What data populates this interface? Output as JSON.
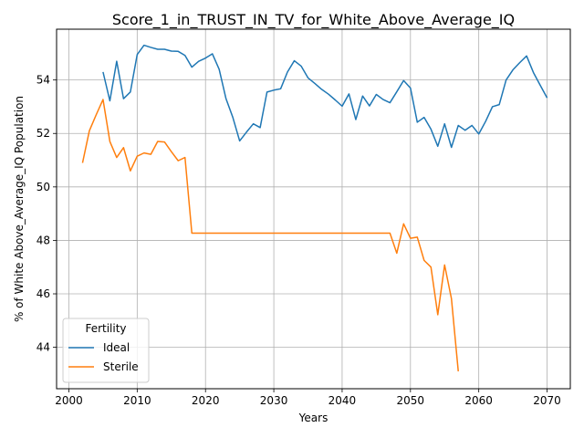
{
  "chart_data": {
    "type": "line",
    "title": "Score_1_in_TRUST_IN_TV_for_White_Above_Average_IQ",
    "xlabel": "Years",
    "ylabel": "% of White Above_Average_IQ Population",
    "xlim": [
      1998.2,
      2073.4
    ],
    "ylim": [
      42.45,
      55.9
    ],
    "xticks": [
      2000,
      2010,
      2020,
      2030,
      2040,
      2050,
      2060,
      2070
    ],
    "yticks": [
      44,
      46,
      48,
      50,
      52,
      54
    ],
    "grid": true,
    "legend": {
      "title": "Fertility",
      "placement": "lower-left"
    },
    "series": [
      {
        "name": "Ideal",
        "color": "#1f77b4",
        "points": [
          [
            2005,
            54.3
          ],
          [
            2006,
            53.22
          ],
          [
            2007,
            54.7
          ],
          [
            2008,
            53.3
          ],
          [
            2009,
            53.55
          ],
          [
            2010,
            54.95
          ],
          [
            2011,
            55.3
          ],
          [
            2012,
            55.22
          ],
          [
            2013,
            55.15
          ],
          [
            2014,
            55.15
          ],
          [
            2015,
            55.08
          ],
          [
            2016,
            55.07
          ],
          [
            2017,
            54.92
          ],
          [
            2018,
            54.48
          ],
          [
            2019,
            54.7
          ],
          [
            2020,
            54.82
          ],
          [
            2021,
            54.98
          ],
          [
            2022,
            54.4
          ],
          [
            2023,
            53.3
          ],
          [
            2024,
            52.6
          ],
          [
            2025,
            51.72
          ],
          [
            2026,
            52.05
          ],
          [
            2027,
            52.36
          ],
          [
            2028,
            52.22
          ],
          [
            2029,
            53.55
          ],
          [
            2030,
            53.62
          ],
          [
            2031,
            53.67
          ],
          [
            2032,
            54.3
          ],
          [
            2033,
            54.72
          ],
          [
            2034,
            54.52
          ],
          [
            2035,
            54.08
          ],
          [
            2036,
            53.87
          ],
          [
            2037,
            53.65
          ],
          [
            2038,
            53.47
          ],
          [
            2039,
            53.25
          ],
          [
            2040,
            53.02
          ],
          [
            2041,
            53.48
          ],
          [
            2042,
            52.52
          ],
          [
            2043,
            53.4
          ],
          [
            2044,
            53.03
          ],
          [
            2045,
            53.46
          ],
          [
            2046,
            53.27
          ],
          [
            2047,
            53.15
          ],
          [
            2048,
            53.56
          ],
          [
            2049,
            53.98
          ],
          [
            2050,
            53.7
          ],
          [
            2051,
            52.42
          ],
          [
            2052,
            52.6
          ],
          [
            2053,
            52.16
          ],
          [
            2054,
            51.52
          ],
          [
            2055,
            52.36
          ],
          [
            2056,
            51.48
          ],
          [
            2057,
            52.3
          ],
          [
            2058,
            52.12
          ],
          [
            2059,
            52.3
          ],
          [
            2060,
            51.98
          ],
          [
            2061,
            52.45
          ],
          [
            2062,
            53.0
          ],
          [
            2063,
            53.08
          ],
          [
            2064,
            54.0
          ],
          [
            2065,
            54.38
          ],
          [
            2066,
            54.65
          ],
          [
            2067,
            54.9
          ],
          [
            2068,
            54.28
          ],
          [
            2069,
            53.8
          ],
          [
            2070,
            53.33
          ]
        ]
      },
      {
        "name": "Sterile",
        "color": "#ff7f0e",
        "points": [
          [
            2002,
            50.9
          ],
          [
            2003,
            52.1
          ],
          [
            2004,
            52.7
          ],
          [
            2005,
            53.27
          ],
          [
            2006,
            51.7
          ],
          [
            2007,
            51.1
          ],
          [
            2008,
            51.47
          ],
          [
            2009,
            50.6
          ],
          [
            2010,
            51.15
          ],
          [
            2011,
            51.27
          ],
          [
            2012,
            51.22
          ],
          [
            2013,
            51.7
          ],
          [
            2014,
            51.68
          ],
          [
            2015,
            51.32
          ],
          [
            2016,
            50.98
          ],
          [
            2017,
            51.1
          ],
          [
            2018,
            48.27
          ],
          [
            2020,
            48.27
          ],
          [
            2025,
            48.27
          ],
          [
            2030,
            48.27
          ],
          [
            2035,
            48.27
          ],
          [
            2040,
            48.27
          ],
          [
            2045,
            48.27
          ],
          [
            2047,
            48.27
          ],
          [
            2048,
            47.52
          ],
          [
            2049,
            48.62
          ],
          [
            2050,
            48.08
          ],
          [
            2051,
            48.12
          ],
          [
            2052,
            47.25
          ],
          [
            2053,
            47.0
          ],
          [
            2054,
            45.22
          ],
          [
            2055,
            47.08
          ],
          [
            2056,
            45.82
          ],
          [
            2057,
            43.1
          ]
        ]
      }
    ]
  }
}
